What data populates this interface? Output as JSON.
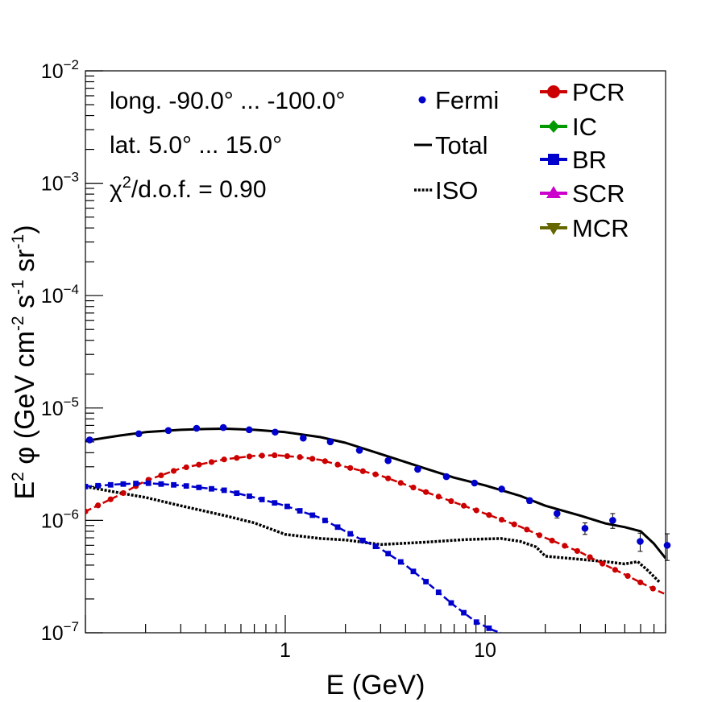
{
  "chart_data": {
    "type": "line",
    "xscale": "log",
    "yscale": "log",
    "xlim": [
      0.1,
      80
    ],
    "ylim": [
      1e-07,
      0.01
    ],
    "xlabel": "E (GeV)",
    "ylabel": "E² φ (GeV cm⁻² s⁻¹ sr⁻¹)",
    "ylabel_parts": {
      "prefix": "E",
      "p1": "2",
      "phi": " φ (GeV cm",
      "p2": "-2",
      "s": " s",
      "p3": "-1",
      "sr": " sr",
      "p4": "-1",
      "end": ")"
    },
    "x_tick_labels": [
      {
        "value": 1,
        "label": "1"
      },
      {
        "value": 10,
        "label": "10"
      }
    ],
    "y_tick_labels": [
      {
        "value": 1e-07,
        "base": "10",
        "exp": "−7"
      },
      {
        "value": 1e-06,
        "base": "10",
        "exp": "−6"
      },
      {
        "value": 1e-05,
        "base": "10",
        "exp": "−5"
      },
      {
        "value": 0.0001,
        "base": "10",
        "exp": "−4"
      },
      {
        "value": 0.001,
        "base": "10",
        "exp": "−3"
      },
      {
        "value": 0.01,
        "base": "10",
        "exp": "−2"
      }
    ],
    "info": {
      "longitude": "long. -90.0° ... -100.0°",
      "latitude": "lat. 5.0° ... 15.0°",
      "chi_prefix": "χ",
      "chi_exp": "2",
      "chi_suffix": "/d.o.f. = 0.90"
    },
    "legend_left": [
      {
        "name": "Fermi",
        "style": "points",
        "color": "#0000cc"
      },
      {
        "name": "Total",
        "style": "solid",
        "color": "#000000"
      },
      {
        "name": "ISO",
        "style": "dotted",
        "color": "#000000"
      }
    ],
    "legend_right": [
      {
        "name": "PCR",
        "marker": "circle",
        "color": "#cc0000"
      },
      {
        "name": "IC",
        "marker": "diamond",
        "color": "#009900"
      },
      {
        "name": "BR",
        "marker": "square",
        "color": "#0000cc"
      },
      {
        "name": "SCR",
        "marker": "triangle-up",
        "color": "#cc00cc"
      },
      {
        "name": "MCR",
        "marker": "triangle-down",
        "color": "#666600"
      }
    ],
    "fermi": {
      "x": [
        0.105,
        0.185,
        0.26,
        0.36,
        0.49,
        0.66,
        0.89,
        1.23,
        1.68,
        2.35,
        3.27,
        4.6,
        6.4,
        8.85,
        12.1,
        16.7,
        22.9,
        31.6,
        43.5,
        59.7,
        81.5
      ],
      "y": [
        5.2e-06,
        5.9e-06,
        6.3e-06,
        6.6e-06,
        6.7e-06,
        6.4e-06,
        6.1e-06,
        5.4e-06,
        5e-06,
        4.2e-06,
        3.4e-06,
        2.85e-06,
        2.45e-06,
        2.15e-06,
        1.9e-06,
        1.5e-06,
        1.15e-06,
        8.5e-07,
        1e-06,
        6.5e-07,
        6e-07
      ],
      "err": [
        1.5e-07,
        1.5e-07,
        1.5e-07,
        1.5e-07,
        1.5e-07,
        1.5e-07,
        1.5e-07,
        1.5e-07,
        1.2e-07,
        1e-07,
        8e-08,
        7e-08,
        6e-08,
        6e-08,
        6e-08,
        8e-08,
        1e-07,
        1e-07,
        1.5e-07,
        1.2e-07,
        1.6e-07
      ]
    },
    "series": [
      {
        "name": "Total",
        "color": "#000000",
        "style": "solid",
        "x": [
          0.1,
          0.15,
          0.2,
          0.3,
          0.4,
          0.5,
          0.7,
          1.0,
          1.5,
          2.0,
          3.0,
          5.0,
          7.0,
          10.0,
          15.0,
          20.0,
          30.0,
          40.0,
          50.0,
          60.0,
          70.0,
          80.0
        ],
        "y": [
          5.1e-06,
          5.7e-06,
          6.1e-06,
          6.4e-06,
          6.5e-06,
          6.55e-06,
          6.4e-06,
          6.1e-06,
          5.5e-06,
          4.9e-06,
          3.9e-06,
          2.9e-06,
          2.4e-06,
          2.05e-06,
          1.65e-06,
          1.35e-06,
          1.1e-06,
          9.4e-07,
          8.7e-07,
          8e-07,
          6.2e-07,
          4.6e-07
        ]
      },
      {
        "name": "ISO",
        "color": "#000000",
        "style": "dotted",
        "x": [
          0.1,
          0.15,
          0.2,
          0.3,
          0.5,
          0.7,
          1.0,
          1.5,
          2.0,
          3.0,
          5.0,
          8.0,
          12.0,
          15.0,
          18.0,
          20.0,
          30.0,
          40.0,
          50.0,
          58.0,
          65.0,
          75.0
        ],
        "y": [
          2e-06,
          1.75e-06,
          1.6e-06,
          1.35e-06,
          1.1e-06,
          9.5e-07,
          7.5e-07,
          6.9e-07,
          6.7e-07,
          6.1e-07,
          6.4e-07,
          6.75e-07,
          6.9e-07,
          6.5e-07,
          5.8e-07,
          4.8e-07,
          4.5e-07,
          4.3e-07,
          4.1e-07,
          4.3e-07,
          3.6e-07,
          2.8e-07
        ]
      },
      {
        "name": "PCR",
        "color": "#cc0000",
        "marker": "circle",
        "x": [
          0.1,
          0.15,
          0.2,
          0.3,
          0.5,
          0.7,
          0.9,
          1.2,
          1.5,
          2.0,
          3.0,
          5.0,
          7.0,
          10.0,
          15.0,
          20.0,
          30.0,
          40.0,
          50.0,
          60.0,
          70.0,
          80.0
        ],
        "y": [
          1.2e-06,
          1.7e-06,
          2.25e-06,
          2.9e-06,
          3.5e-06,
          3.75e-06,
          3.8e-06,
          3.65e-06,
          3.45e-06,
          3e-06,
          2.5e-06,
          1.8e-06,
          1.45e-06,
          1.15e-06,
          8.8e-07,
          7e-07,
          5.2e-07,
          4e-07,
          3.3e-07,
          2.8e-07,
          2.45e-07,
          2.2e-07
        ]
      },
      {
        "name": "BR",
        "color": "#0000cc",
        "marker": "square",
        "x": [
          0.1,
          0.15,
          0.2,
          0.3,
          0.5,
          0.7,
          1.0,
          1.5,
          2.0,
          2.5,
          3.0,
          4.0,
          5.0,
          7.0,
          9.0,
          11.0,
          12.0
        ],
        "y": [
          2e-06,
          2.1e-06,
          2.15e-06,
          2.05e-06,
          1.85e-06,
          1.6e-06,
          1.35e-06,
          1.05e-06,
          8e-07,
          6.5e-07,
          5.6e-07,
          4e-07,
          2.9e-07,
          1.75e-07,
          1.25e-07,
          1.05e-07,
          1e-07
        ]
      }
    ]
  }
}
